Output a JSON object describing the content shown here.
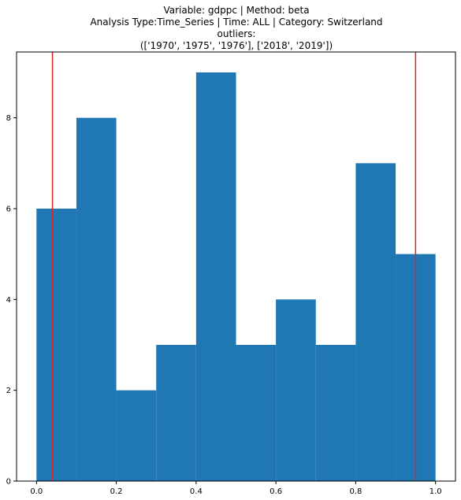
{
  "chart_data": {
    "type": "bar",
    "title_lines": [
      "Variable: gdppc | Method: beta",
      "Analysis Type:Time_Series | Time: ALL | Category: Switzerland",
      "outliers:",
      "(['1970', '1975', '1976'], ['2018', '2019'])"
    ],
    "bin_edges": [
      0.0,
      0.1,
      0.2,
      0.3,
      0.4,
      0.5,
      0.6,
      0.7,
      0.8,
      0.9,
      1.0
    ],
    "values": [
      6,
      8,
      2,
      3,
      9,
      3,
      4,
      3,
      7,
      5
    ],
    "bar_color": "#1f77b4",
    "threshold_lines": [
      0.04,
      0.95
    ],
    "threshold_color": "#d62728",
    "xlim": [
      -0.05,
      1.05
    ],
    "ylim": [
      0,
      9.45
    ],
    "xticks": [
      0.0,
      0.2,
      0.4,
      0.6,
      0.8,
      1.0
    ],
    "xtick_labels": [
      "0.0",
      "0.2",
      "0.4",
      "0.6",
      "0.8",
      "1.0"
    ],
    "yticks": [
      0,
      2,
      4,
      6,
      8
    ],
    "ytick_labels": [
      "0",
      "2",
      "4",
      "6",
      "8"
    ],
    "grid": false,
    "xlabel": "",
    "ylabel": ""
  }
}
